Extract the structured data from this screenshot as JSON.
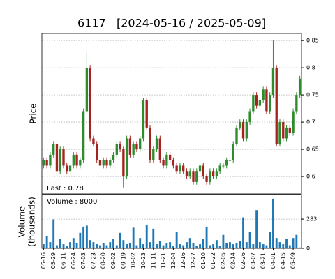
{
  "chart_data": {
    "type": "candlestick",
    "title": "6117   [2024-05-16 / 2025-05-09]",
    "ylabel": "Price",
    "volume_ylabel": [
      "Volume",
      "(thousands)"
    ],
    "last_label": "Last : 0.78",
    "volume_label": "Volume : 8000",
    "up_color": "#2e8b2e",
    "down_color": "#a3231f",
    "volume_color": "#1f77b4",
    "grid": true,
    "categories": [
      "05-16",
      null,
      null,
      "05-29",
      null,
      null,
      "06-11",
      null,
      null,
      "06-24",
      null,
      null,
      "07-03",
      null,
      null,
      "07-23",
      null,
      null,
      "08-20",
      null,
      null,
      "09-02",
      null,
      null,
      "09-19",
      null,
      null,
      "10-02",
      null,
      null,
      "10-23",
      null,
      null,
      "11-11",
      null,
      null,
      "11-21",
      null,
      null,
      "12-04",
      null,
      null,
      "12-16",
      null,
      null,
      "12-27",
      null,
      null,
      "01-10",
      null,
      null,
      "01-22",
      null,
      null,
      "02-05",
      null,
      null,
      "02-14",
      null,
      null,
      "02-26",
      null,
      null,
      "03-07",
      null,
      null,
      "03-21",
      null,
      null,
      "04-01",
      null,
      null,
      "04-15",
      null,
      null,
      "05-09",
      null,
      null
    ],
    "open": [
      0.62,
      0.63,
      0.62,
      0.64,
      0.66,
      0.61,
      0.65,
      0.62,
      0.61,
      0.62,
      0.64,
      0.62,
      0.63,
      0.72,
      0.8,
      0.67,
      0.66,
      0.63,
      0.62,
      0.63,
      0.62,
      0.63,
      0.64,
      0.66,
      0.65,
      0.6,
      0.67,
      0.64,
      0.66,
      0.65,
      0.67,
      0.74,
      0.69,
      0.63,
      0.65,
      0.67,
      0.63,
      0.62,
      0.64,
      0.63,
      0.62,
      0.61,
      0.62,
      0.61,
      0.6,
      0.61,
      0.59,
      0.61,
      0.62,
      0.6,
      0.59,
      0.61,
      0.6,
      0.61,
      0.62,
      0.62,
      0.63,
      0.63,
      0.66,
      0.69,
      0.7,
      0.67,
      0.7,
      0.72,
      0.75,
      0.73,
      0.74,
      0.76,
      0.72,
      0.75,
      0.8,
      0.66,
      0.7,
      0.67,
      0.69,
      0.68,
      0.72,
      0.75
    ],
    "high": [
      0.635,
      0.635,
      0.645,
      0.665,
      0.665,
      0.655,
      0.655,
      0.625,
      0.625,
      0.645,
      0.645,
      0.635,
      0.725,
      0.83,
      0.805,
      0.675,
      0.665,
      0.635,
      0.635,
      0.635,
      0.635,
      0.645,
      0.665,
      0.665,
      0.655,
      0.675,
      0.675,
      0.665,
      0.665,
      0.675,
      0.745,
      0.745,
      0.695,
      0.655,
      0.675,
      0.675,
      0.635,
      0.645,
      0.645,
      0.635,
      0.625,
      0.625,
      0.625,
      0.615,
      0.615,
      0.615,
      0.615,
      0.625,
      0.625,
      0.605,
      0.615,
      0.615,
      0.615,
      0.625,
      0.625,
      0.635,
      0.635,
      0.665,
      0.695,
      0.705,
      0.705,
      0.705,
      0.725,
      0.755,
      0.755,
      0.745,
      0.765,
      0.765,
      0.755,
      0.85,
      0.805,
      0.705,
      0.705,
      0.695,
      0.695,
      0.725,
      0.755,
      0.785
    ],
    "low": [
      0.615,
      0.615,
      0.615,
      0.635,
      0.605,
      0.605,
      0.615,
      0.605,
      0.605,
      0.615,
      0.615,
      0.615,
      0.625,
      0.715,
      0.665,
      0.655,
      0.625,
      0.615,
      0.615,
      0.615,
      0.615,
      0.625,
      0.635,
      0.645,
      0.58,
      0.595,
      0.635,
      0.635,
      0.645,
      0.645,
      0.665,
      0.685,
      0.625,
      0.625,
      0.645,
      0.625,
      0.615,
      0.615,
      0.625,
      0.615,
      0.605,
      0.605,
      0.605,
      0.595,
      0.595,
      0.585,
      0.585,
      0.605,
      0.595,
      0.585,
      0.585,
      0.595,
      0.595,
      0.605,
      0.615,
      0.615,
      0.625,
      0.625,
      0.655,
      0.685,
      0.665,
      0.665,
      0.695,
      0.715,
      0.725,
      0.725,
      0.735,
      0.715,
      0.715,
      0.745,
      0.655,
      0.655,
      0.665,
      0.665,
      0.675,
      0.675,
      0.715,
      0.745
    ],
    "close": [
      0.63,
      0.62,
      0.64,
      0.66,
      0.61,
      0.65,
      0.62,
      0.61,
      0.62,
      0.64,
      0.62,
      0.63,
      0.72,
      0.8,
      0.67,
      0.66,
      0.63,
      0.62,
      0.63,
      0.62,
      0.63,
      0.64,
      0.66,
      0.65,
      0.6,
      0.67,
      0.64,
      0.66,
      0.65,
      0.67,
      0.74,
      0.69,
      0.63,
      0.65,
      0.67,
      0.63,
      0.62,
      0.64,
      0.63,
      0.62,
      0.61,
      0.62,
      0.61,
      0.6,
      0.61,
      0.59,
      0.61,
      0.62,
      0.6,
      0.59,
      0.61,
      0.6,
      0.61,
      0.62,
      0.62,
      0.63,
      0.63,
      0.66,
      0.69,
      0.7,
      0.67,
      0.7,
      0.72,
      0.75,
      0.73,
      0.74,
      0.76,
      0.72,
      0.75,
      0.8,
      0.66,
      0.7,
      0.67,
      0.69,
      0.68,
      0.72,
      0.75,
      0.78
    ],
    "volume": [
      40,
      120,
      60,
      280,
      30,
      90,
      40,
      20,
      60,
      100,
      50,
      150,
      210,
      220,
      80,
      60,
      40,
      30,
      50,
      30,
      60,
      90,
      30,
      150,
      80,
      40,
      50,
      200,
      30,
      100,
      40,
      230,
      60,
      190,
      40,
      70,
      30,
      50,
      60,
      20,
      160,
      40,
      30,
      60,
      100,
      50,
      20,
      40,
      90,
      210,
      30,
      40,
      80,
      20,
      130,
      50,
      60,
      40,
      50,
      70,
      300,
      60,
      160,
      40,
      370,
      60,
      40,
      30,
      160,
      480,
      100,
      60,
      40,
      90,
      30,
      100,
      130,
      8
    ],
    "ylim": [
      0.568,
      0.863
    ],
    "yticks": [
      0.6,
      0.65,
      0.7,
      0.75,
      0.8,
      0.85
    ],
    "y2lim": [
      0,
      520
    ],
    "y2ticks": [
      0,
      283
    ]
  }
}
